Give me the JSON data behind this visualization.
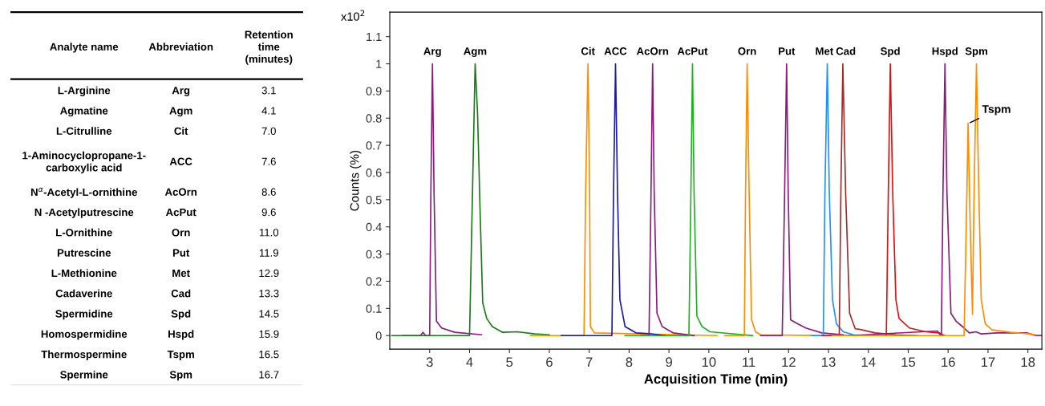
{
  "chart_data": [
    {
      "type": "other",
      "annotations": [
        "Analyte name",
        "Abbreviation",
        "Retention\ntime\n(minutes)",
        "L-Arginine",
        "Arg",
        "3.1",
        "Agmatine",
        "Agm",
        "4.1",
        "L-Citrulline",
        "Cit",
        "7.0",
        "1-Aminocyclopropane-1-\ncarboxylic acid",
        "ACC",
        "7.6",
        "N$^{α}$-Acetyl-L-ornithine",
        "AcOrn",
        "8.6",
        "N -Acetylputrescine",
        "AcPut",
        "9.6",
        "L-Ornithine",
        "Orn",
        "11.0",
        "Putrescine",
        "Put",
        "11.9",
        "L-Methionine",
        "Met",
        "12.9",
        "Cadaverine",
        "Cad",
        "13.3",
        "Spermidine",
        "Spd",
        "14.5",
        "Homospermidine",
        "Hspd",
        "15.9",
        "Thermospermine",
        "Tspm",
        "16.5",
        "Spermine",
        "Spm",
        "16.7"
      ]
    },
    {
      "type": "line",
      "xlabel": "Acquisition Time (min)",
      "ylabel": "Counts (%)",
      "xlim": [
        2.0,
        18.35
      ],
      "ylim": [
        -0.05,
        1.19
      ],
      "xticks": [
        3,
        4,
        5,
        6,
        7,
        8,
        9,
        10,
        11,
        12,
        13,
        14,
        15,
        16,
        17,
        18
      ],
      "yticks": [
        0,
        0.1,
        0.2,
        0.3,
        0.4,
        0.5,
        0.6,
        0.7,
        0.8,
        0.9,
        1,
        1.1
      ],
      "grid": false,
      "legend": false,
      "marker": "none",
      "line_style": "solid",
      "annotations": [
        "x10$^{2}$",
        {
          "text": "Tspm",
          "x": 16.5,
          "y": 0.78
        }
      ],
      "series": [
        {
          "name": "Arg",
          "color": "#8b1a7e",
          "x": [
            2.33,
            2.77,
            2.83,
            2.9,
            3.0,
            3.03,
            3.07,
            3.11,
            3.17,
            3.3,
            3.63,
            4.3
          ],
          "values": [
            0,
            0,
            0.012,
            0,
            0,
            0.525,
            1.0,
            0.525,
            0.053,
            0.028,
            0.012,
            0.003
          ]
        },
        {
          "name": "Agm",
          "color": "#1a7a1a",
          "x": [
            2.05,
            4.0,
            4.14,
            4.2,
            4.27,
            4.33,
            4.43,
            4.57,
            4.83,
            5.2,
            5.63,
            6.0
          ],
          "values": [
            0,
            0,
            1.0,
            0.82,
            0.427,
            0.121,
            0.063,
            0.033,
            0.012,
            0.014,
            0.006,
            0.003
          ]
        },
        {
          "name": "Cit",
          "color": "#ff8c00",
          "x": [
            5.53,
            6.87,
            6.91,
            6.97,
            7.01,
            7.03,
            7.13,
            10.2
          ],
          "values": [
            0,
            0,
            0.525,
            1.0,
            0.525,
            0.033,
            0.01,
            0
          ]
        },
        {
          "name": "ACC",
          "color": "#1a1aaa",
          "x": [
            6.3,
            7.57,
            7.61,
            7.66,
            7.71,
            7.77,
            7.9,
            8.17,
            8.5,
            8.9
          ],
          "values": [
            0,
            0,
            0.525,
            1.0,
            0.525,
            0.132,
            0.033,
            0.01,
            0.007,
            0
          ]
        },
        {
          "name": "AcOrn",
          "color": "#8b1a7e",
          "x": [
            8.3,
            8.5,
            8.55,
            8.59,
            8.63,
            8.7,
            8.83,
            9.1,
            9.63
          ],
          "values": [
            0,
            0,
            0.525,
            1.0,
            0.525,
            0.082,
            0.033,
            0.01,
            0
          ]
        },
        {
          "name": "AcPut",
          "color": "#22b022",
          "x": [
            7.9,
            9.5,
            9.55,
            9.59,
            9.63,
            9.7,
            9.83,
            10.03,
            11.1
          ],
          "values": [
            0,
            0,
            0.525,
            1.0,
            0.525,
            0.072,
            0.033,
            0.014,
            0
          ]
        },
        {
          "name": "Orn",
          "color": "#ff8c00",
          "x": [
            10.4,
            10.89,
            10.92,
            10.96,
            11.01,
            11.07,
            11.17,
            11.3,
            12.9
          ],
          "values": [
            0,
            0,
            0.525,
            1.0,
            0.525,
            0.06,
            0.014,
            0.003,
            0
          ]
        },
        {
          "name": "Put",
          "color": "#8b1a7e",
          "x": [
            11.3,
            11.84,
            11.9,
            11.95,
            11.99,
            12.05,
            12.17,
            12.43,
            12.83,
            13.37
          ],
          "values": [
            0,
            0,
            0.525,
            1.0,
            0.525,
            0.058,
            0.048,
            0.028,
            0.01,
            0.003
          ]
        },
        {
          "name": "Met",
          "color": "#1e90ff",
          "x": [
            12.57,
            12.87,
            12.91,
            12.97,
            13.02,
            13.1,
            13.2,
            13.37,
            13.63,
            13.9
          ],
          "values": [
            0,
            0,
            0.525,
            1.0,
            0.525,
            0.132,
            0.043,
            0.014,
            0.003,
            0
          ]
        },
        {
          "name": "Cad",
          "color": "#a52a2a",
          "x": [
            12.9,
            13.27,
            13.31,
            13.36,
            13.43,
            13.53,
            13.67,
            13.77,
            14.17,
            14.7,
            15.23
          ],
          "values": [
            0,
            0,
            0.525,
            1.0,
            0.525,
            0.082,
            0.025,
            0.023,
            0.01,
            0.003,
            0
          ]
        },
        {
          "name": "Spd",
          "color": "#e01010",
          "x": [
            12.83,
            14.45,
            14.5,
            14.55,
            14.61,
            14.69,
            14.77,
            15.03,
            15.43,
            15.77,
            15.9
          ],
          "values": [
            0,
            0,
            0.525,
            1.0,
            0.525,
            0.132,
            0.063,
            0.028,
            0.014,
            0.01,
            0.001
          ]
        },
        {
          "name": "Hspd",
          "color": "#8b1a7e",
          "x": [
            13.5,
            15.73,
            15.8,
            15.83,
            15.87,
            15.92,
            15.97,
            16.07,
            16.2,
            16.4,
            16.53,
            16.7,
            16.83,
            17.23,
            17.97,
            18.17,
            18.35
          ],
          "values": [
            0,
            0.017,
            0.003,
            0,
            0.525,
            1.0,
            0.525,
            0.082,
            0.053,
            0.028,
            0.01,
            0.014,
            0.006,
            0.01,
            0.01,
            0.001,
            0
          ]
        },
        {
          "name": "Spm",
          "color": "#ff8c00",
          "x": [
            13.1,
            16.4,
            16.47,
            16.5,
            16.55,
            16.61,
            16.65,
            16.71,
            16.77,
            16.83,
            16.93,
            17.1,
            17.57,
            18.03,
            18.17
          ],
          "values": [
            0,
            0,
            0.525,
            0.781,
            0.427,
            0.078,
            0.525,
            1.0,
            0.525,
            0.132,
            0.043,
            0.021,
            0.012,
            0.006,
            0.003
          ]
        }
      ]
    }
  ]
}
